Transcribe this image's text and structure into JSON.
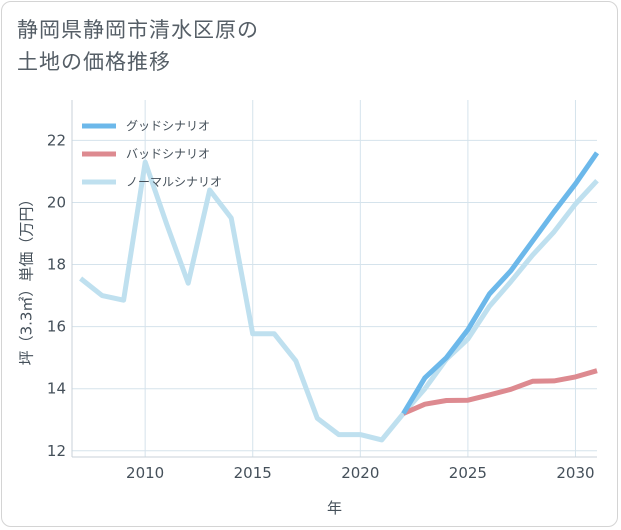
{
  "page": {
    "title_line1": "静岡県静岡市清水区原の",
    "title_line2": "土地の価格推移"
  },
  "chart_data": {
    "type": "line",
    "xlabel": "年",
    "ylabel": "坪（3.3㎡）単価（万円）",
    "xlim": [
      2006.6,
      2031
    ],
    "ylim": [
      11.8,
      23.3
    ],
    "xticks": [
      2010,
      2015,
      2020,
      2025,
      2030
    ],
    "yticks": [
      12,
      14,
      16,
      18,
      20,
      22
    ],
    "legend_position": "top-left",
    "series": [
      {
        "name": "グッドシナリオ",
        "color": "#6cb8ea",
        "x": [
          2022,
          2023,
          2024,
          2025,
          2026,
          2027,
          2028,
          2029,
          2030,
          2031
        ],
        "values": [
          13.2,
          14.35,
          15.0,
          15.9,
          17.05,
          17.8,
          18.75,
          19.7,
          20.6,
          21.6
        ]
      },
      {
        "name": "バッドシナリオ",
        "color": "#dd8a90",
        "x": [
          2022,
          2023,
          2024,
          2025,
          2026,
          2027,
          2028,
          2029,
          2030,
          2031
        ],
        "values": [
          13.2,
          13.5,
          13.62,
          13.63,
          13.8,
          13.98,
          14.24,
          14.25,
          14.38,
          14.58
        ]
      },
      {
        "name": "ノーマルシナリオ",
        "color": "#bfe0ef",
        "x": [
          2007,
          2008,
          2009,
          2010,
          2011,
          2012,
          2013,
          2014,
          2015,
          2016,
          2017,
          2018,
          2019,
          2020,
          2021,
          2022,
          2023,
          2024,
          2025,
          2026,
          2027,
          2028,
          2029,
          2030,
          2031
        ],
        "values": [
          17.55,
          17.0,
          16.85,
          21.3,
          19.3,
          17.4,
          20.4,
          19.5,
          15.77,
          15.77,
          14.9,
          13.05,
          12.52,
          12.52,
          12.35,
          13.2,
          14.0,
          14.95,
          15.6,
          16.65,
          17.45,
          18.3,
          19.05,
          19.95,
          20.7
        ]
      }
    ]
  }
}
